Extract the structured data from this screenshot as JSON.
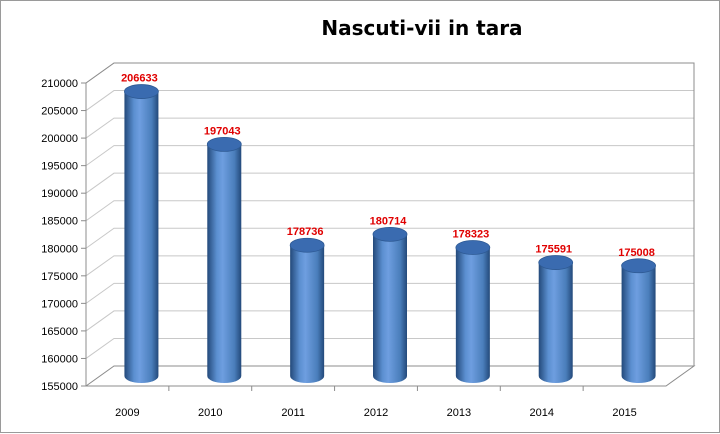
{
  "chart_data": {
    "type": "bar",
    "title": "Nascuti-vii in tara",
    "xlabel": "",
    "ylabel": "",
    "categories": [
      "2009",
      "2010",
      "2011",
      "2012",
      "2013",
      "2014",
      "2015"
    ],
    "values": [
      206633,
      197043,
      178736,
      180714,
      178323,
      175591,
      175008
    ],
    "data_labels": [
      "206633",
      "197043",
      "178736",
      "180714",
      "178323",
      "175591",
      "175008"
    ],
    "ylim": [
      155000,
      210000
    ],
    "y_ticks": [
      "155000",
      "160000",
      "165000",
      "170000",
      "175000",
      "180000",
      "185000",
      "190000",
      "195000",
      "200000",
      "205000",
      "210000"
    ],
    "grid": true,
    "legend": "none",
    "style": "3d-cylinder",
    "colors": {
      "bar": "#4a7ebb",
      "bar_dark": "#23497a",
      "bar_top": "#3a6bb0",
      "data_label": "#e00000",
      "grid": "#c8c8c8"
    }
  }
}
